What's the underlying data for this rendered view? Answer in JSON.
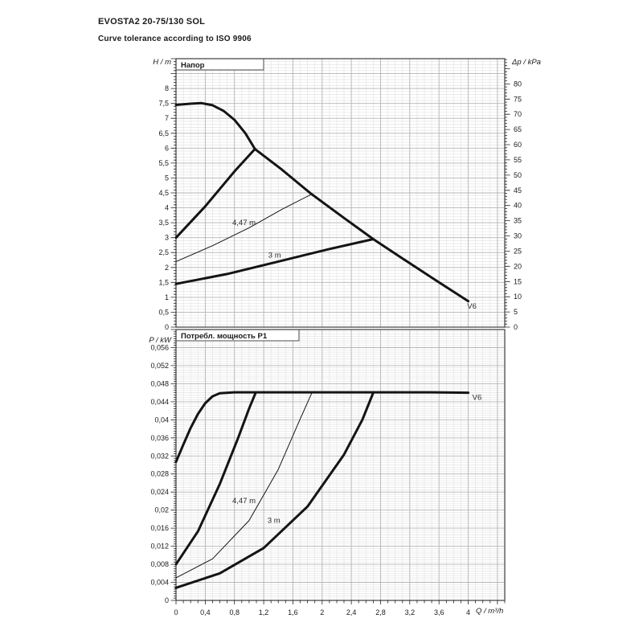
{
  "header": {
    "title": "EVOSTA2 20-75/130 SOL",
    "subtitle": "Curve tolerance according to ISO 9906"
  },
  "colors": {
    "curve": "#141414",
    "grid_minor": "#e4e4e4",
    "grid_major": "#b4b4b4",
    "box_border": "#3c3c3c",
    "text": "#1a1a1a"
  },
  "chart_data": [
    {
      "type": "line",
      "title": "Напор",
      "ylabel_left": "H / m",
      "ylabel_right": "Δp / kPa",
      "xlim": [
        0,
        4.5
      ],
      "ylim": [
        0,
        9
      ],
      "grid": {
        "x_minor": 0.1,
        "x_major": 0.4,
        "y_minor": 0.1,
        "y_major": 0.5
      },
      "left_ticks": {
        "step": 0.5,
        "minor": 0.1,
        "labels": [
          "0",
          "0,5",
          "1",
          "1,5",
          "2",
          "2,5",
          "3",
          "3,5",
          "4",
          "4,5",
          "5",
          "5,5",
          "6",
          "6,5",
          "7",
          "7,5",
          "8"
        ]
      },
      "right_ticks": {
        "step": 5,
        "minor": 1,
        "unit_per_left": 9.81,
        "max": 88,
        "labels": [
          "0",
          "5",
          "10",
          "15",
          "20",
          "25",
          "30",
          "35",
          "40",
          "45",
          "50",
          "55",
          "60",
          "65",
          "70",
          "75",
          "80"
        ]
      },
      "x_ticks": {
        "step": 0.4,
        "minor": 0.1,
        "labels": []
      },
      "series": [
        {
          "name": "head-max-speed-v6",
          "width": 3,
          "points": [
            [
              0,
              7.45
            ],
            [
              0.2,
              7.49
            ],
            [
              0.35,
              7.51
            ],
            [
              0.5,
              7.44
            ],
            [
              0.65,
              7.25
            ],
            [
              0.8,
              6.95
            ],
            [
              0.95,
              6.5
            ],
            [
              1.08,
              5.97
            ],
            [
              1.45,
              5.28
            ],
            [
              1.85,
              4.47
            ],
            [
              2.3,
              3.66
            ],
            [
              2.7,
              2.95
            ],
            [
              3.1,
              2.3
            ],
            [
              3.55,
              1.58
            ],
            [
              4,
              0.87
            ]
          ]
        },
        {
          "name": "head-rise-to-max",
          "width": 3,
          "points": [
            [
              0,
              3.0
            ],
            [
              0.4,
              4.05
            ],
            [
              0.8,
              5.22
            ],
            [
              1.08,
              5.97
            ]
          ]
        },
        {
          "name": "head-4-47m",
          "width": 1,
          "points": [
            [
              0,
              2.2
            ],
            [
              0.5,
              2.73
            ],
            [
              1.0,
              3.33
            ],
            [
              1.45,
              3.95
            ],
            [
              1.85,
              4.45
            ]
          ]
        },
        {
          "name": "head-3m",
          "width": 3,
          "points": [
            [
              0,
              1.45
            ],
            [
              0.7,
              1.78
            ],
            [
              1.4,
              2.2
            ],
            [
              2.1,
              2.62
            ],
            [
              2.7,
              2.95
            ]
          ]
        }
      ],
      "annotations": [
        {
          "text": "4,47 m",
          "x": 0.93,
          "y": 3.42
        },
        {
          "text": "3 m",
          "x": 1.35,
          "y": 2.33
        },
        {
          "text": "V6",
          "x": 4.05,
          "y": 0.62
        }
      ]
    },
    {
      "type": "line",
      "title": "Потребл. мощность P1",
      "ylabel_left": "P / kW",
      "xlabel": "Q / m³/h",
      "xlim": [
        0,
        4.5
      ],
      "ylim": [
        0,
        0.06
      ],
      "grid": {
        "x_minor": 0.1,
        "x_major": 0.4,
        "y_minor": 0.0005,
        "y_major": 0.004
      },
      "left_ticks": {
        "step": 0.004,
        "minor": 0.0005,
        "labels": [
          "0",
          "0,004",
          "0,008",
          "0,012",
          "0,016",
          "0,02",
          "0,024",
          "0,028",
          "0,032",
          "0,036",
          "0,04",
          "0,044",
          "0,048",
          "0,052",
          "0,056"
        ]
      },
      "x_ticks": {
        "step": 0.4,
        "minor": 0.1,
        "labels": [
          "0",
          "0,4",
          "0,8",
          "1,2",
          "1,6",
          "2",
          "2,4",
          "2,8",
          "3,2",
          "3,6",
          "4"
        ]
      },
      "series": [
        {
          "name": "power-max-speed-v6",
          "width": 3,
          "points": [
            [
              0,
              0.0307
            ],
            [
              0.1,
              0.0345
            ],
            [
              0.2,
              0.0382
            ],
            [
              0.3,
              0.0413
            ],
            [
              0.4,
              0.0437
            ],
            [
              0.5,
              0.0452
            ],
            [
              0.6,
              0.0459
            ],
            [
              0.8,
              0.0461
            ],
            [
              1.5,
              0.0461
            ],
            [
              2.5,
              0.0461
            ],
            [
              3.5,
              0.0461
            ],
            [
              4,
              0.046
            ]
          ]
        },
        {
          "name": "power-rise-to-max",
          "width": 3,
          "points": [
            [
              0,
              0.008
            ],
            [
              0.3,
              0.0153
            ],
            [
              0.6,
              0.0258
            ],
            [
              0.85,
              0.036
            ],
            [
              1.0,
              0.0425
            ],
            [
              1.09,
              0.046
            ]
          ]
        },
        {
          "name": "power-4-47m",
          "width": 1,
          "points": [
            [
              0,
              0.005
            ],
            [
              0.5,
              0.0092
            ],
            [
              1.0,
              0.0177
            ],
            [
              1.4,
              0.029
            ],
            [
              1.7,
              0.0402
            ],
            [
              1.86,
              0.046
            ]
          ]
        },
        {
          "name": "power-3m",
          "width": 3,
          "points": [
            [
              0,
              0.0028
            ],
            [
              0.6,
              0.006
            ],
            [
              1.2,
              0.0116
            ],
            [
              1.8,
              0.0208
            ],
            [
              2.3,
              0.0323
            ],
            [
              2.55,
              0.04
            ],
            [
              2.7,
              0.046
            ]
          ]
        }
      ],
      "annotations": [
        {
          "text": "4,47 m",
          "x": 0.93,
          "y": 0.0215
        },
        {
          "text": "3 m",
          "x": 1.34,
          "y": 0.0172
        },
        {
          "text": "V6",
          "x": 4.12,
          "y": 0.0444
        }
      ]
    }
  ]
}
